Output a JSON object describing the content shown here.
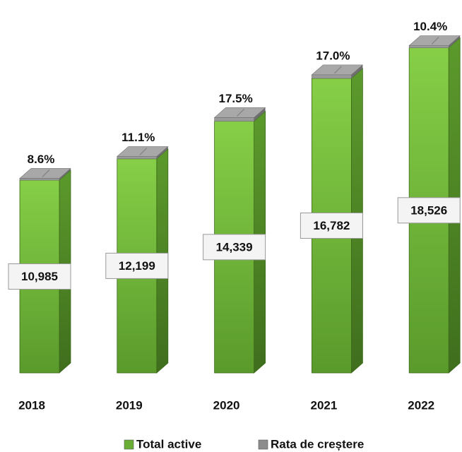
{
  "chart_data": {
    "type": "bar3d",
    "categories": [
      "2018",
      "2019",
      "2020",
      "2021",
      "2022"
    ],
    "series": [
      {
        "name": "Total active",
        "color": "#6aae35",
        "values": [
          10985,
          12199,
          14339,
          16782,
          18526
        ],
        "value_labels": [
          "10,985",
          "12,199",
          "14,339",
          "16,782",
          "18,526"
        ]
      },
      {
        "name": "Rata de creștere",
        "color": "#8c8c8c",
        "values": [
          8.6,
          11.1,
          17.5,
          17.0,
          10.4
        ],
        "value_labels": [
          "8.6%",
          "11.1%",
          "17.5%",
          "17.0%",
          "10.4%"
        ]
      }
    ],
    "legend": "bottom"
  }
}
